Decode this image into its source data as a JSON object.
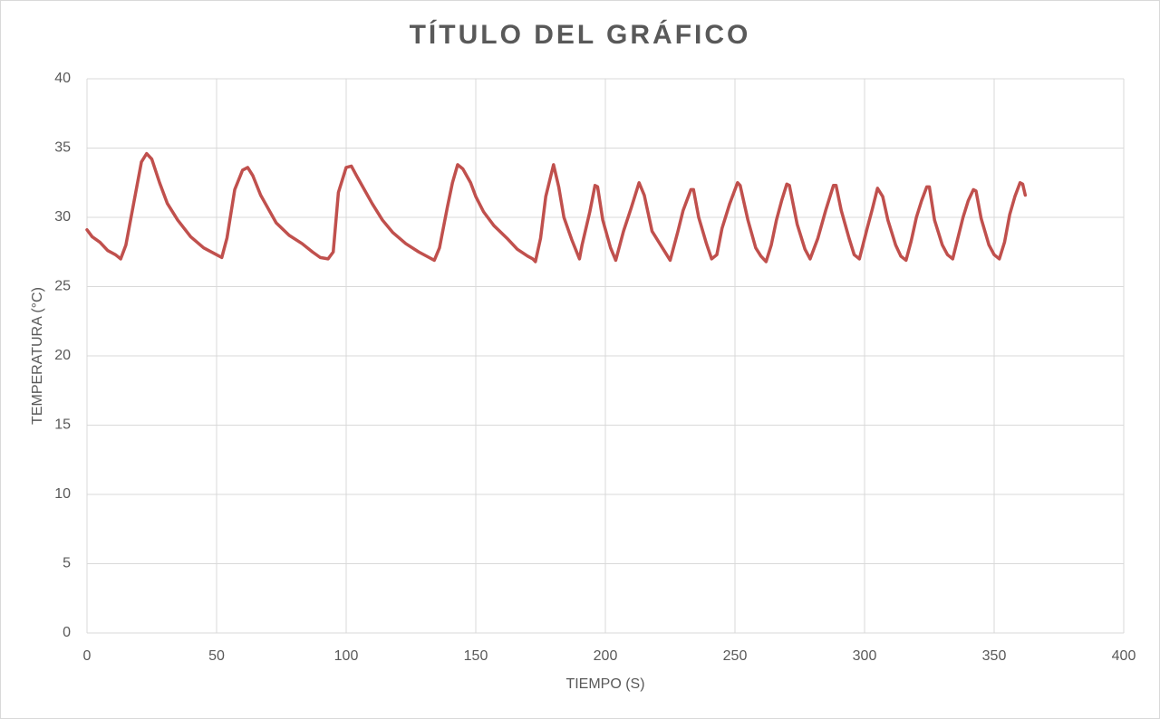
{
  "chart_data": {
    "type": "line",
    "title": "TÍTULO DEL GRÁFICO",
    "x_label": "TIEMPO (S)",
    "y_label": "TEMPERATURA (°C)",
    "x": [
      0,
      2,
      5,
      8,
      11,
      13,
      15,
      18,
      21,
      23,
      25,
      28,
      31,
      35,
      40,
      45,
      50,
      52,
      54,
      57,
      60,
      62,
      64,
      67,
      70,
      73,
      78,
      83,
      87,
      90,
      93,
      95,
      97,
      100,
      102,
      104,
      107,
      110,
      114,
      118,
      123,
      128,
      132,
      134,
      136,
      139,
      141,
      143,
      145,
      148,
      150,
      153,
      157,
      162,
      166,
      170,
      172,
      173,
      175,
      177,
      180,
      182,
      184,
      187,
      190,
      191,
      194,
      196,
      197,
      199,
      202,
      204,
      207,
      210,
      213,
      215,
      218,
      222,
      225,
      228,
      230,
      233,
      234,
      236,
      239,
      241,
      243,
      245,
      248,
      251,
      252,
      255,
      258,
      260,
      262,
      264,
      266,
      268,
      270,
      271,
      274,
      277,
      279,
      282,
      285,
      288,
      289,
      291,
      294,
      296,
      298,
      301,
      303,
      305,
      307,
      309,
      312,
      314,
      316,
      318,
      320,
      322,
      324,
      325,
      327,
      330,
      332,
      334,
      336,
      338,
      340,
      342,
      343,
      345,
      348,
      350,
      352,
      354,
      356,
      358,
      360,
      361,
      362
    ],
    "series": [
      {
        "name": "Temperatura",
        "color": "#c0504d",
        "values": [
          29.1,
          28.6,
          28.2,
          27.6,
          27.3,
          27.0,
          28.0,
          31.0,
          34.0,
          34.6,
          34.2,
          32.5,
          31.0,
          29.8,
          28.6,
          27.8,
          27.3,
          27.1,
          28.5,
          32.0,
          33.4,
          33.6,
          33.0,
          31.6,
          30.6,
          29.6,
          28.7,
          28.1,
          27.5,
          27.1,
          27.0,
          27.5,
          31.8,
          33.6,
          33.7,
          33.0,
          32.0,
          31.0,
          29.8,
          28.9,
          28.1,
          27.5,
          27.1,
          26.9,
          27.8,
          30.7,
          32.5,
          33.8,
          33.5,
          32.5,
          31.5,
          30.4,
          29.4,
          28.5,
          27.7,
          27.2,
          27.0,
          26.8,
          28.5,
          31.5,
          33.8,
          32.2,
          30.0,
          28.4,
          27.0,
          28.0,
          30.4,
          32.3,
          32.2,
          29.8,
          27.8,
          26.9,
          29.0,
          30.7,
          32.5,
          31.6,
          29.0,
          27.8,
          26.9,
          29.0,
          30.5,
          32.0,
          32.0,
          30.0,
          28.1,
          27.0,
          27.3,
          29.2,
          31.0,
          32.5,
          32.3,
          29.8,
          27.8,
          27.2,
          26.8,
          28.0,
          29.8,
          31.2,
          32.4,
          32.3,
          29.5,
          27.7,
          27.0,
          28.5,
          30.5,
          32.3,
          32.3,
          30.5,
          28.5,
          27.3,
          27.0,
          29.2,
          30.6,
          32.1,
          31.5,
          29.8,
          28.0,
          27.2,
          26.9,
          28.3,
          30.0,
          31.2,
          32.2,
          32.2,
          29.8,
          28.0,
          27.3,
          27.0,
          28.5,
          30.0,
          31.2,
          32.0,
          31.9,
          29.9,
          28.0,
          27.3,
          27.0,
          28.2,
          30.2,
          31.5,
          32.5,
          32.4,
          31.6
        ]
      }
    ],
    "xlim": [
      0,
      400
    ],
    "xticks": [
      0,
      50,
      100,
      150,
      200,
      250,
      300,
      350,
      400
    ],
    "ylim": [
      0,
      40
    ],
    "yticks": [
      0,
      5,
      10,
      15,
      20,
      25,
      30,
      35,
      40
    ],
    "grid": true
  }
}
